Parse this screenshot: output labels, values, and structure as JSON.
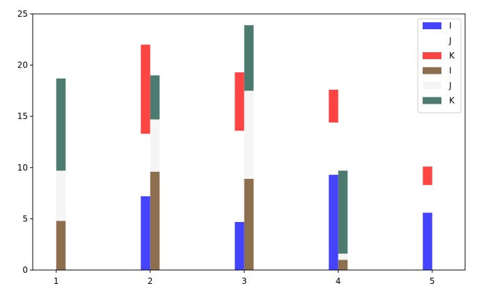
{
  "chart_data": {
    "type": "bar",
    "stacked": true,
    "title": "",
    "xlabel": "",
    "ylabel": "",
    "categories": [
      "1",
      "2",
      "3",
      "4",
      "5"
    ],
    "x_ticks": [
      "1",
      "2",
      "3",
      "4",
      "5"
    ],
    "y_ticks": [
      "0",
      "5",
      "10",
      "15",
      "20",
      "25"
    ],
    "xlim": [
      0.75,
      5.35
    ],
    "ylim": [
      0,
      25
    ],
    "grid": false,
    "legend_position": "top-right",
    "groups": [
      {
        "categories": [
          "2",
          "3",
          "4",
          "5"
        ],
        "x": [
          2,
          3,
          4,
          5
        ],
        "offset": -0.05,
        "series": [
          {
            "name": "I",
            "color": "#4444ff",
            "values": [
              7.2,
              4.7,
              9.3,
              5.6
            ]
          },
          {
            "name": "J",
            "color": "#ffffff",
            "values": [
              6.1,
              8.9,
              5.1,
              2.7
            ]
          },
          {
            "name": "K",
            "color": "#ff4444",
            "values": [
              8.7,
              5.7,
              3.2,
              1.8
            ]
          }
        ]
      },
      {
        "categories": [
          "1",
          "2",
          "3",
          "4"
        ],
        "x": [
          1,
          2,
          3,
          4
        ],
        "offset": 0.05,
        "series": [
          {
            "name": "I",
            "color": "#8b6f4e",
            "values": [
              4.8,
              9.6,
              8.9,
              1.0
            ]
          },
          {
            "name": "J",
            "color": "#f5f5f5",
            "values": [
              4.9,
              5.1,
              8.6,
              0.6
            ]
          },
          {
            "name": "K",
            "color": "#4e7b6f",
            "values": [
              9.0,
              4.3,
              6.4,
              8.1
            ]
          }
        ]
      }
    ],
    "legend": [
      {
        "label": "I",
        "color": "#4444ff"
      },
      {
        "label": "J",
        "color": "#ffffff"
      },
      {
        "label": "K",
        "color": "#ff4444"
      },
      {
        "label": "I",
        "color": "#8b6f4e"
      },
      {
        "label": "J",
        "color": "#f5f5f5"
      },
      {
        "label": "K",
        "color": "#4e7b6f"
      }
    ]
  }
}
